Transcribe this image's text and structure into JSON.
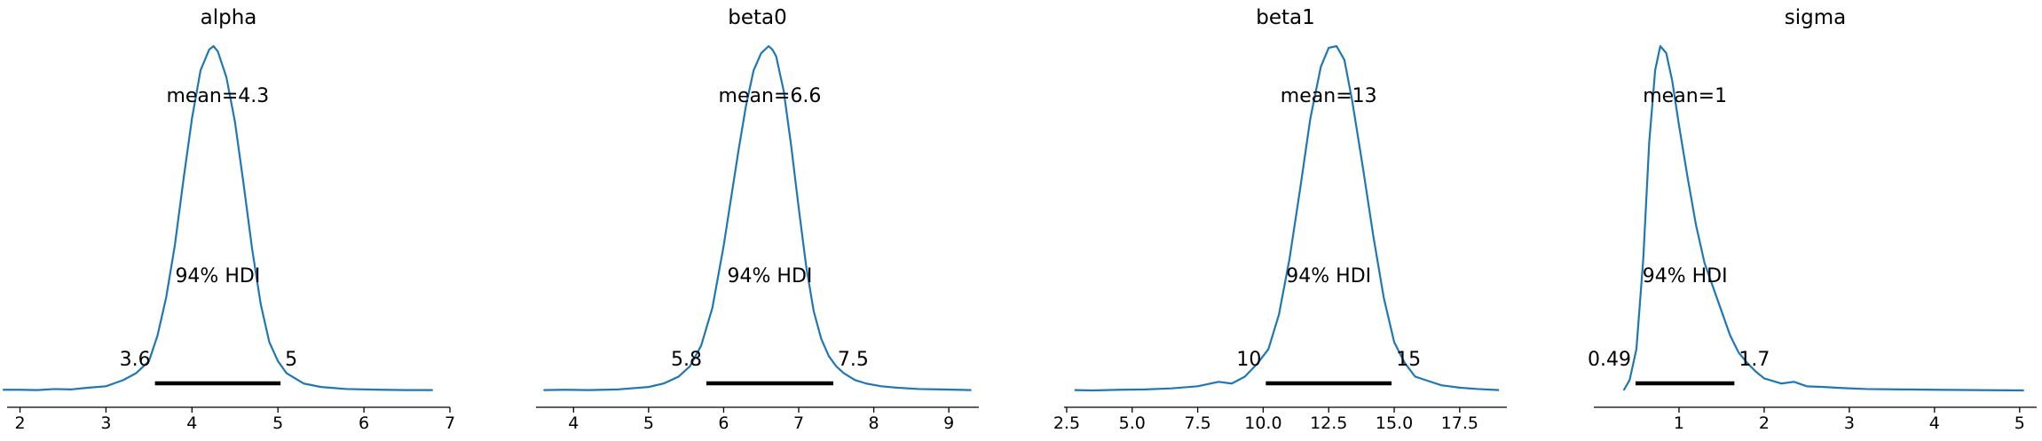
{
  "colors": {
    "curve": "#1f77b4",
    "hdi_bar": "#000000",
    "axis": "#000000"
  },
  "chart_data": [
    {
      "type": "line",
      "title": "alpha",
      "mean_label": "mean=4.3",
      "hdi_label": "94% HDI",
      "hdi": {
        "low": 3.57,
        "high": 5.03,
        "low_label": "3.6",
        "high_label": "5"
      },
      "xlim": [
        1.85,
        7.0
      ],
      "xticks": [
        {
          "v": 2,
          "label": "2"
        },
        {
          "v": 3,
          "label": "3"
        },
        {
          "v": 4,
          "label": "4"
        },
        {
          "v": 5,
          "label": "5"
        },
        {
          "v": 6,
          "label": "6"
        },
        {
          "v": 7,
          "label": "7"
        }
      ],
      "x": [
        1.8,
        2.0,
        2.2,
        2.4,
        2.6,
        2.8,
        3.0,
        3.2,
        3.35,
        3.5,
        3.6,
        3.7,
        3.8,
        3.9,
        4.0,
        4.1,
        4.2,
        4.25,
        4.3,
        4.4,
        4.5,
        4.6,
        4.7,
        4.8,
        4.9,
        5.0,
        5.1,
        5.2,
        5.3,
        5.5,
        5.8,
        6.2,
        6.5,
        6.8
      ],
      "y": [
        0.002,
        0.002,
        0.001,
        0.004,
        0.003,
        0.008,
        0.012,
        0.03,
        0.05,
        0.085,
        0.16,
        0.27,
        0.42,
        0.61,
        0.79,
        0.93,
        0.99,
        1.0,
        0.985,
        0.91,
        0.78,
        0.6,
        0.41,
        0.25,
        0.14,
        0.085,
        0.05,
        0.035,
        0.02,
        0.01,
        0.004,
        0.002,
        0.001,
        0.001
      ]
    },
    {
      "type": "line",
      "title": "beta0",
      "mean_label": "mean=6.6",
      "hdi_label": "94% HDI",
      "hdi": {
        "low": 5.77,
        "high": 7.46,
        "low_label": "5.8",
        "high_label": "7.5"
      },
      "xlim": [
        3.5,
        9.4
      ],
      "xticks": [
        {
          "v": 4,
          "label": "4"
        },
        {
          "v": 5,
          "label": "5"
        },
        {
          "v": 6,
          "label": "6"
        },
        {
          "v": 7,
          "label": "7"
        },
        {
          "v": 8,
          "label": "8"
        },
        {
          "v": 9,
          "label": "9"
        }
      ],
      "x": [
        3.6,
        3.9,
        4.2,
        4.6,
        5.0,
        5.2,
        5.4,
        5.55,
        5.7,
        5.85,
        6.0,
        6.1,
        6.2,
        6.3,
        6.4,
        6.5,
        6.6,
        6.65,
        6.7,
        6.8,
        6.9,
        7.0,
        7.1,
        7.2,
        7.3,
        7.4,
        7.5,
        7.6,
        7.75,
        7.9,
        8.1,
        8.3,
        8.6,
        8.9,
        9.3
      ],
      "y": [
        0.001,
        0.002,
        0.001,
        0.003,
        0.01,
        0.02,
        0.04,
        0.07,
        0.13,
        0.24,
        0.42,
        0.56,
        0.7,
        0.83,
        0.93,
        0.98,
        1.0,
        0.99,
        0.97,
        0.87,
        0.71,
        0.53,
        0.36,
        0.23,
        0.15,
        0.1,
        0.07,
        0.05,
        0.03,
        0.02,
        0.012,
        0.008,
        0.004,
        0.003,
        0.001
      ]
    },
    {
      "type": "line",
      "title": "beta1",
      "mean_label": "mean=13",
      "hdi_label": "94% HDI",
      "hdi": {
        "low": 10.1,
        "high": 14.9,
        "low_label": "10",
        "high_label": "15"
      },
      "xlim": [
        2.4,
        19.3
      ],
      "xticks": [
        {
          "v": 2.5,
          "label": "2.5"
        },
        {
          "v": 5,
          "label": "5.0"
        },
        {
          "v": 7.5,
          "label": "7.5"
        },
        {
          "v": 10,
          "label": "10.0"
        },
        {
          "v": 12.5,
          "label": "12.5"
        },
        {
          "v": 15,
          "label": "15.0"
        },
        {
          "v": 17.5,
          "label": "17.5"
        }
      ],
      "x": [
        2.8,
        3.5,
        4.5,
        5.5,
        6.5,
        7.5,
        8.3,
        8.8,
        9.3,
        9.8,
        10.2,
        10.6,
        11.0,
        11.4,
        11.8,
        12.2,
        12.5,
        12.8,
        13.1,
        13.4,
        13.8,
        14.2,
        14.6,
        15.0,
        15.4,
        15.8,
        16.2,
        16.8,
        17.5,
        18.2,
        19.0
      ],
      "y": [
        0.001,
        0.0,
        0.002,
        0.003,
        0.006,
        0.012,
        0.025,
        0.02,
        0.04,
        0.08,
        0.12,
        0.22,
        0.38,
        0.58,
        0.79,
        0.94,
        0.995,
        1.0,
        0.96,
        0.84,
        0.65,
        0.45,
        0.27,
        0.14,
        0.08,
        0.04,
        0.03,
        0.015,
        0.008,
        0.004,
        0.001
      ]
    },
    {
      "type": "line",
      "title": "sigma",
      "mean_label": "mean=1",
      "hdi_label": "94% HDI",
      "hdi": {
        "low": 0.49,
        "high": 1.65,
        "low_label": "0.49",
        "high_label": "1.7"
      },
      "xlim": [
        0.0,
        5.2
      ],
      "xticks": [
        {
          "v": 1,
          "label": "1"
        },
        {
          "v": 2,
          "label": "2"
        },
        {
          "v": 3,
          "label": "3"
        },
        {
          "v": 4,
          "label": "4"
        },
        {
          "v": 5,
          "label": "5"
        }
      ],
      "x": [
        0.35,
        0.42,
        0.5,
        0.58,
        0.65,
        0.72,
        0.78,
        0.85,
        0.92,
        1.0,
        1.1,
        1.2,
        1.3,
        1.4,
        1.5,
        1.6,
        1.7,
        1.8,
        1.9,
        2.0,
        2.2,
        2.35,
        2.5,
        2.7,
        2.9,
        3.2,
        3.6,
        4.0,
        4.5,
        5.05
      ],
      "y": [
        0.0,
        0.03,
        0.12,
        0.38,
        0.72,
        0.93,
        1.0,
        0.98,
        0.9,
        0.77,
        0.62,
        0.48,
        0.37,
        0.3,
        0.23,
        0.16,
        0.11,
        0.08,
        0.055,
        0.035,
        0.02,
        0.025,
        0.012,
        0.01,
        0.007,
        0.004,
        0.003,
        0.002,
        0.001,
        0.0
      ]
    }
  ]
}
